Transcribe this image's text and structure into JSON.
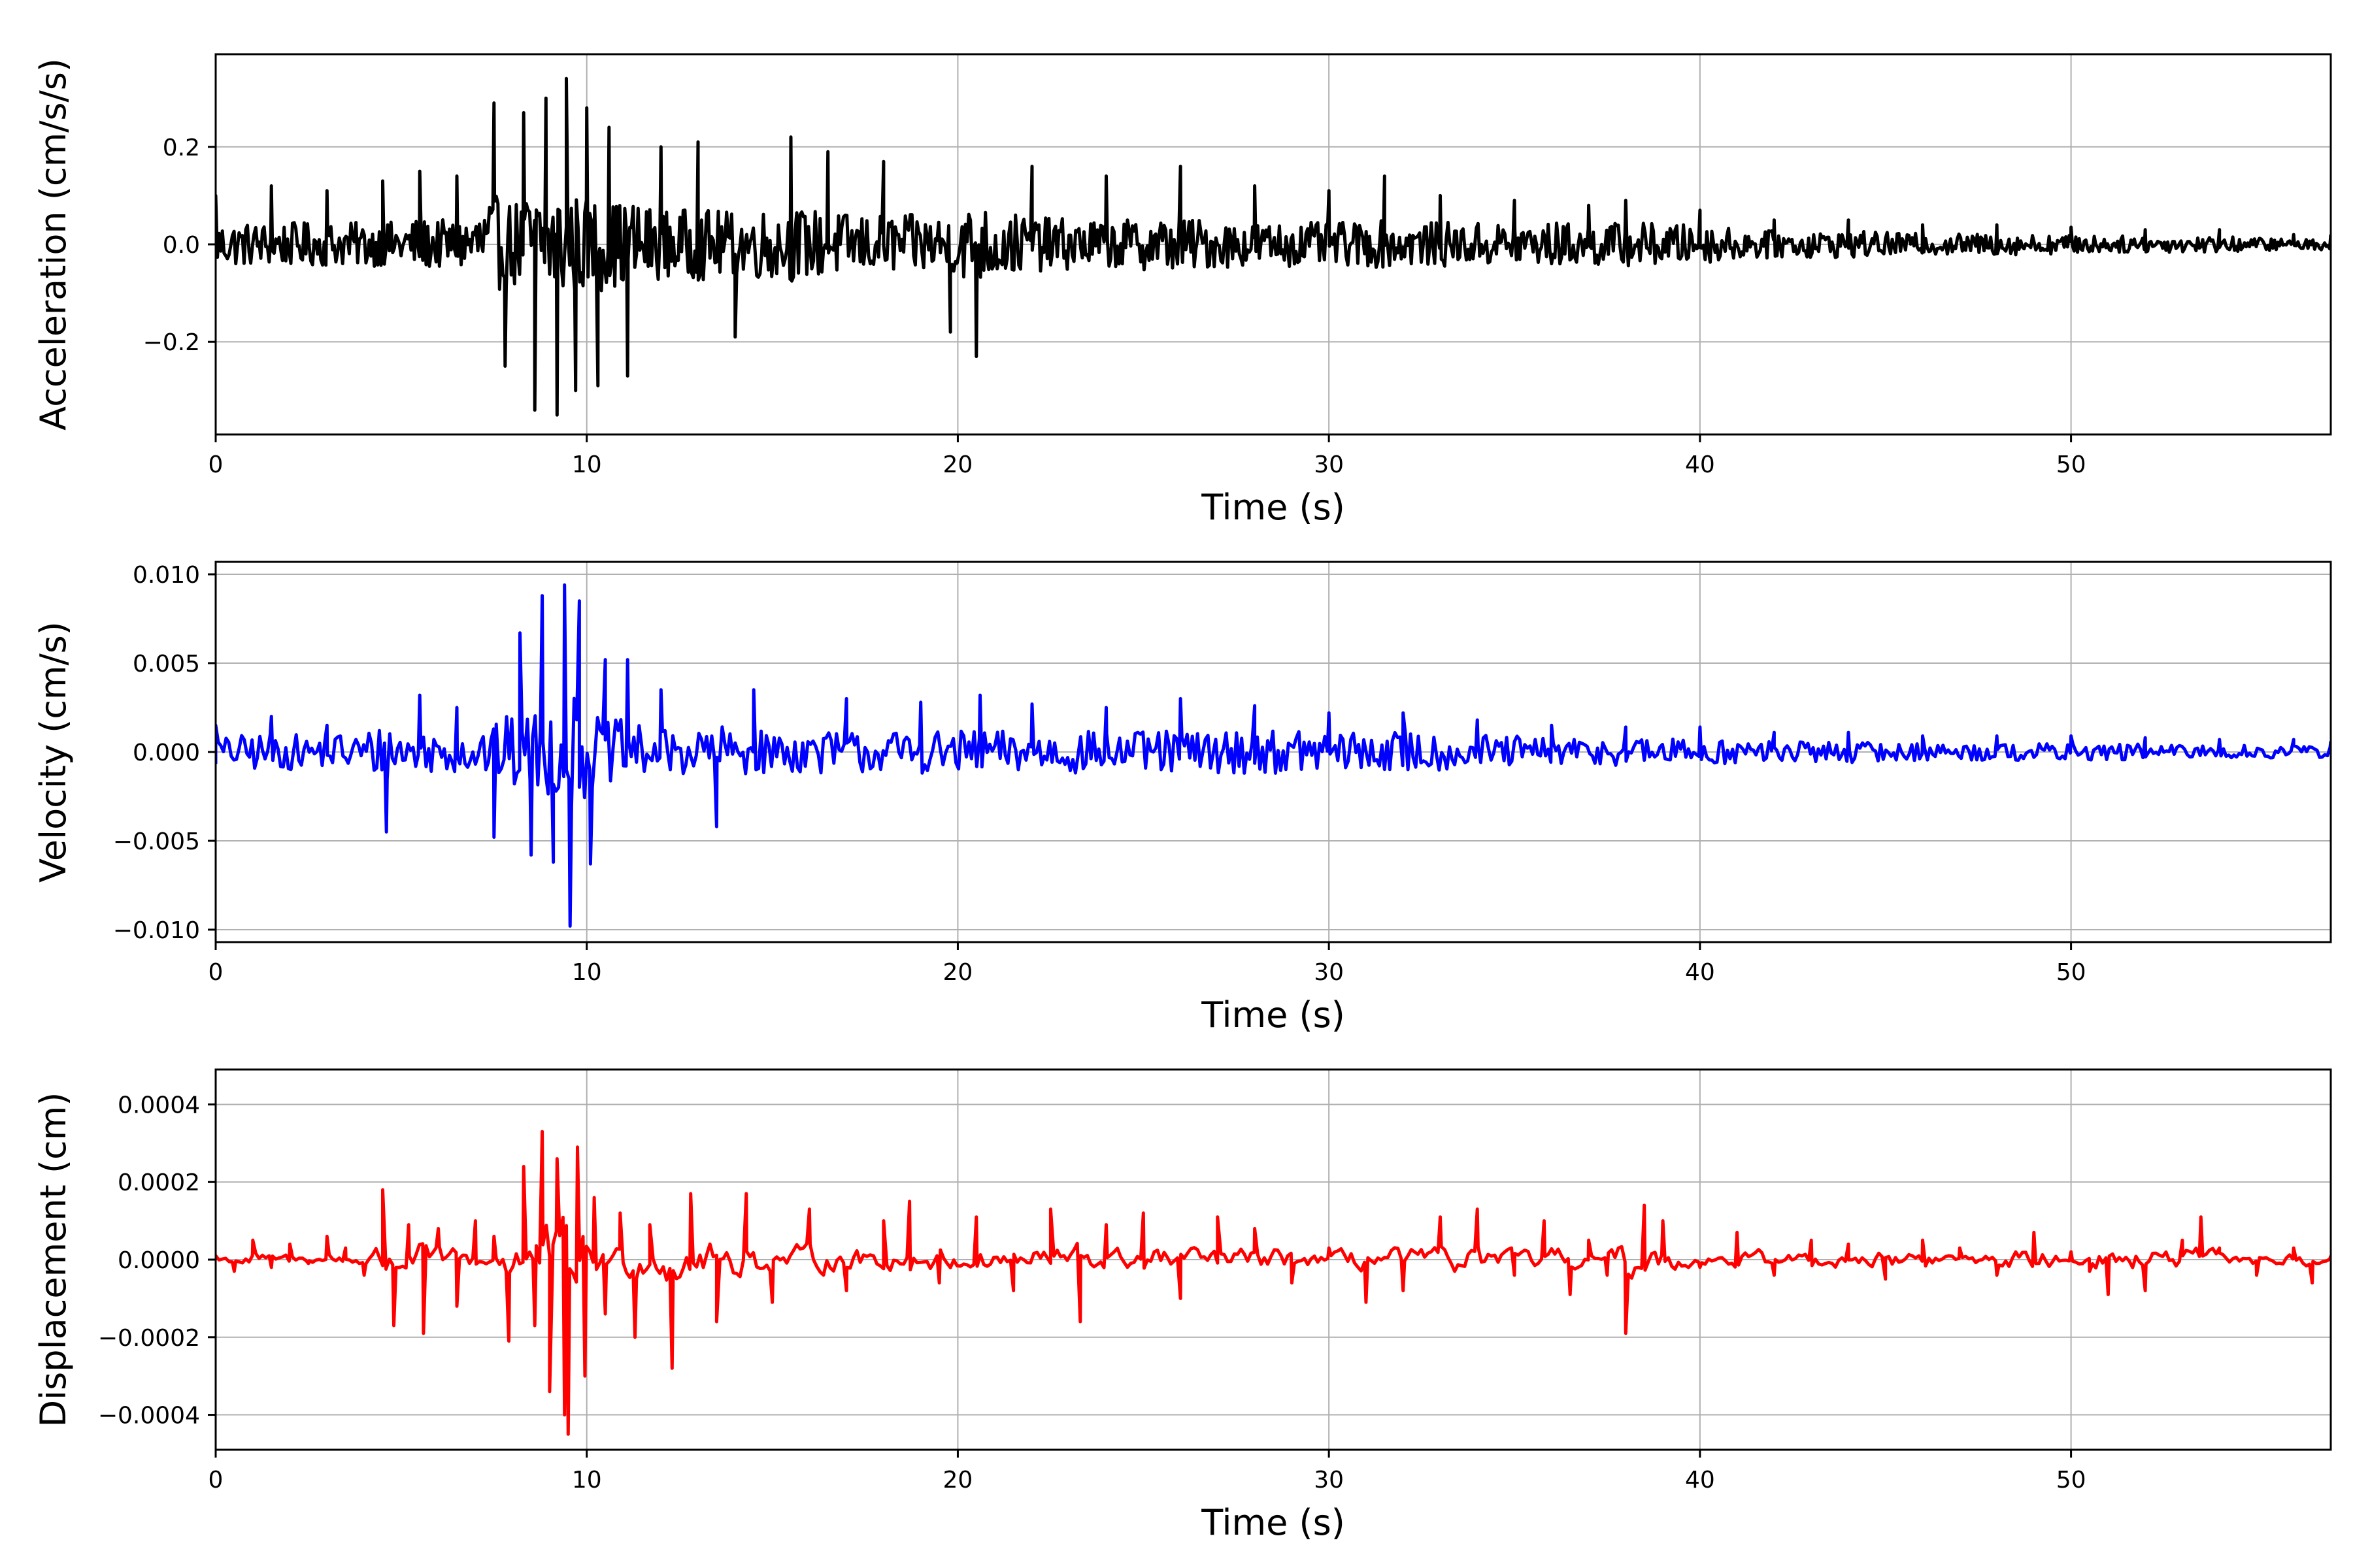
{
  "chart_data": [
    {
      "type": "line",
      "title": "",
      "xlabel": "Time (s)",
      "ylabel": "Acceleration (cm/s/s)",
      "xlim": [
        0,
        57
      ],
      "ylim": [
        -0.39,
        0.39
      ],
      "xticks": [
        0,
        10,
        20,
        30,
        40,
        50
      ],
      "xtick_labels": [
        "0",
        "10",
        "20",
        "30",
        "40",
        "50"
      ],
      "yticks": [
        -0.2,
        0.0,
        0.2
      ],
      "ytick_labels": [
        "−0.2",
        "0.0",
        "0.2"
      ],
      "grid": true,
      "legend": "none",
      "color": "#000000",
      "series": [
        {
          "x": [
            0,
            1.5,
            3,
            4.5,
            5.5,
            6.5,
            7.5,
            7.8,
            8.3,
            8.6,
            8.9,
            9.2,
            9.45,
            9.7,
            10.0,
            10.3,
            10.6,
            11.1,
            12,
            13,
            14,
            15.5,
            16.5,
            18,
            19.8,
            20.5,
            22,
            24,
            26,
            28,
            30,
            31.5,
            33,
            35,
            37,
            38,
            40,
            42,
            44,
            46,
            48,
            50,
            52,
            54,
            56,
            57
          ],
          "y": [
            0.1,
            0.12,
            0.11,
            0.13,
            0.15,
            0.14,
            0.29,
            -0.25,
            0.27,
            -0.34,
            0.3,
            -0.35,
            0.34,
            -0.3,
            0.28,
            -0.29,
            0.24,
            -0.27,
            0.2,
            0.21,
            -0.19,
            0.22,
            0.19,
            0.17,
            -0.18,
            -0.23,
            0.16,
            0.14,
            0.16,
            0.12,
            0.11,
            0.14,
            0.1,
            0.09,
            0.08,
            0.09,
            0.07,
            0.05,
            0.05,
            0.04,
            0.04,
            0.035,
            0.03,
            0.03,
            0.02,
            0.02
          ]
        }
      ]
    },
    {
      "type": "line",
      "title": "",
      "xlabel": "Time (s)",
      "ylabel": "Velocity (cm/s)",
      "xlim": [
        0,
        57
      ],
      "ylim": [
        -0.0107,
        0.0107
      ],
      "xticks": [
        0,
        10,
        20,
        30,
        40,
        50
      ],
      "xtick_labels": [
        "0",
        "10",
        "20",
        "30",
        "40",
        "50"
      ],
      "yticks": [
        -0.01,
        -0.005,
        0.0,
        0.005,
        0.01
      ],
      "ytick_labels": [
        "−0.010",
        "−0.005",
        "0.000",
        "0.005",
        "0.010"
      ],
      "grid": true,
      "legend": "none",
      "color": "#0000ff",
      "series": [
        {
          "x": [
            0,
            1.5,
            3,
            4.6,
            5.5,
            6.5,
            7.5,
            8.2,
            8.5,
            8.8,
            9.1,
            9.4,
            9.55,
            9.8,
            10.1,
            10.5,
            11.1,
            12,
            13.5,
            14.5,
            17,
            19,
            20.6,
            22,
            24,
            26,
            28,
            30,
            32,
            34,
            36,
            38,
            40,
            42,
            44,
            46,
            48,
            50,
            52,
            54,
            56,
            57
          ],
          "y": [
            0.0015,
            0.002,
            0.0015,
            -0.0045,
            0.0032,
            0.0025,
            -0.0048,
            0.0067,
            -0.0058,
            0.0088,
            -0.0062,
            0.0094,
            -0.0098,
            0.0085,
            -0.0063,
            0.0052,
            0.0052,
            0.0035,
            -0.0042,
            0.0035,
            0.003,
            0.0028,
            0.0032,
            0.0027,
            0.0025,
            0.003,
            0.0026,
            0.0022,
            0.0022,
            0.0018,
            0.0015,
            0.0014,
            0.0014,
            0.0011,
            0.0011,
            0.0009,
            0.0009,
            0.0009,
            0.0008,
            0.0007,
            0.0007,
            0.0006
          ]
        }
      ]
    },
    {
      "type": "line",
      "title": "",
      "xlabel": "Time (s)",
      "ylabel": "Displacement (cm)",
      "xlim": [
        0,
        57
      ],
      "ylim": [
        -0.00049,
        0.00049
      ],
      "xticks": [
        0,
        10,
        20,
        30,
        40,
        50
      ],
      "xtick_labels": [
        "0",
        "10",
        "20",
        "30",
        "40",
        "50"
      ],
      "yticks": [
        -0.0004,
        -0.0002,
        0.0,
        0.0002,
        0.0004
      ],
      "ytick_labels": [
        "−0.0004",
        "−0.0002",
        "0.0000",
        "0.0002",
        "0.0004"
      ],
      "grid": true,
      "legend": "none",
      "color": "#ff0000",
      "series": [
        {
          "x": [
            0,
            0.5,
            1,
            1.5,
            2,
            2.5,
            3,
            3.5,
            4,
            4.5,
            4.8,
            5.2,
            5.6,
            6,
            6.5,
            7,
            7.5,
            7.9,
            8.3,
            8.6,
            8.8,
            9.0,
            9.2,
            9.4,
            9.5,
            9.75,
            9.95,
            10.2,
            10.5,
            10.9,
            11.3,
            11.7,
            12.3,
            12.8,
            13.5,
            14.3,
            15,
            16,
            17,
            18,
            18.7,
            19.5,
            20.5,
            21.5,
            22.5,
            23.3,
            24,
            25,
            26,
            27,
            28,
            29,
            30,
            31,
            32,
            33,
            34,
            35,
            35.8,
            36.5,
            37,
            37.5,
            38.0,
            38.5,
            39,
            40,
            41,
            42,
            43,
            44,
            45,
            46,
            47,
            48,
            49,
            50,
            50.5,
            51,
            52,
            53,
            53.5,
            54,
            55,
            56,
            56.5,
            57
          ],
          "y": [
            1e-05,
            -3e-05,
            5e-05,
            -2e-05,
            4e-05,
            -1e-05,
            6e-05,
            3e-05,
            -4e-05,
            0.00018,
            -0.00017,
            9e-05,
            -0.00019,
            8e-05,
            -0.00012,
            0.0001,
            6e-05,
            -0.00021,
            0.00024,
            -0.00017,
            0.00033,
            -0.00034,
            0.00026,
            -0.0004,
            -0.00045,
            0.00029,
            -0.0003,
            0.00016,
            -0.00014,
            0.00012,
            -0.0002,
            9e-05,
            -0.00028,
            0.00017,
            -0.00016,
            0.00017,
            -0.00011,
            0.00013,
            -8e-05,
            0.0001,
            0.00015,
            -6e-05,
            0.00011,
            -8e-05,
            0.00013,
            -0.00016,
            9e-05,
            0.00012,
            -0.0001,
            0.00011,
            8e-05,
            -6e-05,
            3e-05,
            -0.00011,
            -8e-05,
            0.00011,
            0.00013,
            -4e-05,
            0.0001,
            -9e-05,
            5e-05,
            -4e-05,
            -0.00019,
            0.00014,
            0.0001,
            -2e-05,
            7e-05,
            -4e-05,
            5e-05,
            4e-05,
            -5e-05,
            5e-05,
            3e-05,
            -4e-05,
            7e-05,
            2e-05,
            -3e-05,
            -9e-05,
            -8e-05,
            5e-05,
            0.00011,
            3e-05,
            -4e-05,
            3e-05,
            -6e-05,
            1e-05
          ]
        }
      ]
    }
  ]
}
